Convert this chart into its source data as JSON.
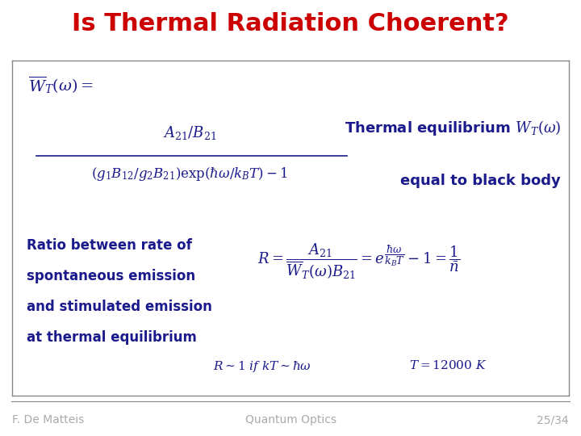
{
  "title": "Is Thermal Radiation Choerent?",
  "title_color": "#cc0000",
  "title_fontsize": 22,
  "bg_color": "#ffffff",
  "dark_blue": "#1a1a8c",
  "body_bg": "#ffffff",
  "footer_left": "F. De Matteis",
  "footer_center": "Quantum Optics",
  "footer_right": "25/34",
  "eq_top_lhs": "$\\overline{W}_T(\\omega) = $",
  "eq_fraction_num": "$A_{21} / B_{21}$",
  "eq_fraction_den": "$(g_1B_{12}/g_2B_{21})\\mathrm{exp}(\\hbar\\omega/k_BT)-1$",
  "annotation_line1": "Thermal equilibrium $W_T(\\omega)$",
  "annotation_line2": "equal to black body",
  "left_text_line1": "Ratio between rate of",
  "left_text_line2": "spontaneous emission",
  "left_text_line3": "and stimulated emission",
  "left_text_line4": "at thermal equilibrium",
  "eq_bottom": "$R = \\dfrac{A_{21}}{\\overline{W}_T(\\omega)B_{21}} = e^{\\dfrac{\\hbar\\omega}{k_BT}} - 1 = \\dfrac{1}{\\bar{n}}$",
  "eq_bottom_sub1": "$R\\sim 1\\ if\\ kT\\sim \\hbar\\omega$",
  "eq_bottom_sub2": "$T=12000\\ K$",
  "footer_color": "#aaaaaa"
}
